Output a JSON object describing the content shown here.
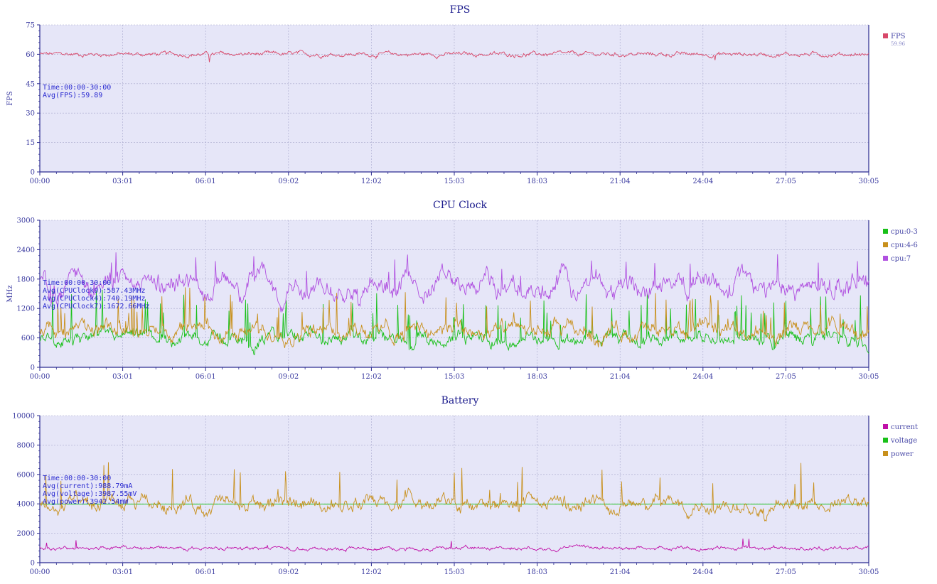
{
  "chart_data": [
    {
      "type": "line",
      "title": "FPS",
      "xlabel": "",
      "ylabel": "FPS",
      "ylim": [
        0,
        75
      ],
      "yticks": [
        0,
        15,
        30,
        45,
        60,
        75
      ],
      "xticks": [
        "00:00",
        "03:01",
        "06:01",
        "09:02",
        "12:02",
        "15:03",
        "18:03",
        "21:04",
        "24:04",
        "27:05",
        "30:05"
      ],
      "annotations": [
        "Time:00:00-30:00",
        "Avg(FPS):59.89"
      ],
      "series": [
        {
          "name": "FPS",
          "color": "#d8486a",
          "base": 60,
          "noise": 0.7,
          "legend_sub": "59.96",
          "spikes": [
            [
              0.055,
              56
            ],
            [
              0.125,
              54
            ],
            [
              0.205,
              56
            ],
            [
              0.815,
              57
            ]
          ]
        }
      ]
    },
    {
      "type": "line",
      "title": "CPU Clock",
      "xlabel": "",
      "ylabel": "MHz",
      "ylim": [
        0,
        3000
      ],
      "yticks": [
        0,
        600,
        1200,
        1800,
        2400,
        3000
      ],
      "xticks": [
        "00:00",
        "03:01",
        "06:01",
        "09:02",
        "12:02",
        "15:03",
        "18:03",
        "21:04",
        "24:04",
        "27:05",
        "30:05"
      ],
      "annotations": [
        "Time:00:00-30:00",
        "Avg(CPUClock0):587.43MHz",
        "Avg(CPUClock4):740.19MHz",
        "Avg(CPUClock7):1672.66MHz"
      ],
      "series": [
        {
          "name": "cpu:0-3",
          "color": "#18c018",
          "base": 587,
          "noise": 90,
          "spike_rate": 0.05,
          "spike_min": 300,
          "spike_max": 900
        },
        {
          "name": "cpu:4-6",
          "color": "#c8901c",
          "base": 740,
          "noise": 110,
          "spike_rate": 0.04,
          "spike_min": 250,
          "spike_max": 750
        },
        {
          "name": "cpu:7",
          "color": "#b050e0",
          "base": 1672,
          "noise": 140,
          "wave": 220,
          "spike_rate": 0.02,
          "spike_min": 200,
          "spike_max": 600
        }
      ]
    },
    {
      "type": "line",
      "title": "Battery",
      "xlabel": "",
      "ylabel": "",
      "ylim": [
        0,
        10000
      ],
      "yticks": [
        0,
        2000,
        4000,
        6000,
        8000,
        10000
      ],
      "xticks": [
        "00:00",
        "03:01",
        "06:01",
        "09:02",
        "12:02",
        "15:03",
        "18:03",
        "21:04",
        "24:04",
        "27:05",
        "30:05"
      ],
      "annotations": [
        "Time:00:00-30:00",
        "Avg(current):988.79mA",
        "Avg(voltage):3987.55mV",
        "Avg(power):3942.54mW"
      ],
      "series": [
        {
          "name": "current",
          "color": "#c010a8",
          "base": 989,
          "noise": 80,
          "spike_rate": 0.01,
          "spike_min": 200,
          "spike_max": 700
        },
        {
          "name": "voltage",
          "color": "#18c018",
          "base": 3988,
          "noise": 3
        },
        {
          "name": "power",
          "color": "#c8901c",
          "base": 3943,
          "noise": 320,
          "wave": 250,
          "spike_rate": 0.02,
          "spike_min": 500,
          "spike_max": 2800
        }
      ]
    }
  ],
  "colors": {
    "plot_bg": "#e6e6f8",
    "axis": "#2a2a90",
    "grid": "#a8a8cc"
  }
}
